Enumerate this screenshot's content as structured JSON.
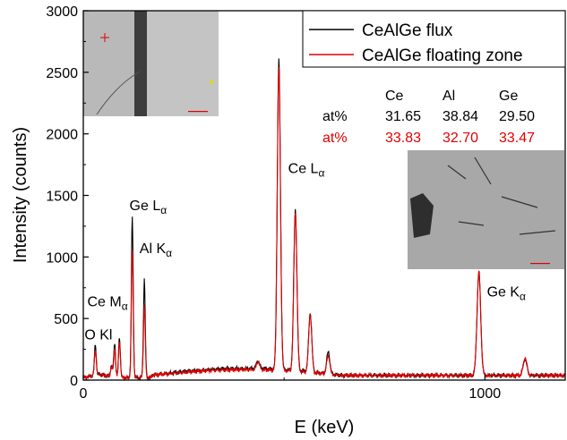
{
  "chart_data": {
    "type": "line",
    "xlabel": "E (keV)",
    "ylabel": "Intensity (counts)",
    "xlim": [
      0,
      1200
    ],
    "ylim": [
      0,
      3000
    ],
    "x_ticks": [
      0,
      1000
    ],
    "y_ticks": [
      0,
      500,
      1000,
      1500,
      2000,
      2500,
      3000
    ],
    "grid": false,
    "legend_position": "top-right",
    "series": [
      {
        "name": "CeAlGe flux",
        "color": "#000000",
        "peaks": [
          [
            30,
            290
          ],
          [
            70,
            120
          ],
          [
            78,
            300
          ],
          [
            90,
            350
          ],
          [
            122,
            1320
          ],
          [
            152,
            820
          ],
          [
            435,
            155
          ],
          [
            487,
            2600
          ],
          [
            528,
            1380
          ],
          [
            565,
            540
          ],
          [
            610,
            230
          ],
          [
            985,
            860
          ],
          [
            1100,
            170
          ]
        ]
      },
      {
        "name": "CeAlGe floating zone",
        "color": "#e00000",
        "peaks": [
          [
            30,
            250
          ],
          [
            70,
            110
          ],
          [
            78,
            260
          ],
          [
            90,
            320
          ],
          [
            122,
            1060
          ],
          [
            152,
            610
          ],
          [
            435,
            150
          ],
          [
            487,
            2530
          ],
          [
            528,
            1360
          ],
          [
            565,
            540
          ],
          [
            610,
            200
          ],
          [
            985,
            880
          ],
          [
            1100,
            180
          ]
        ]
      }
    ],
    "annotations": [
      {
        "text": "Ge L",
        "sub": "α",
        "x": 115,
        "y": 1380
      },
      {
        "text": "Al K",
        "sub": "α",
        "x": 140,
        "y": 1030
      },
      {
        "text": "Ce M",
        "sub": "α",
        "x": 10,
        "y": 600
      },
      {
        "text": "O Kl",
        "sub": "",
        "x": 3,
        "y": 330
      },
      {
        "text": "Ce L",
        "sub": "α",
        "x": 510,
        "y": 1680
      },
      {
        "text": "Ge K",
        "sub": "α",
        "x": 1005,
        "y": 680
      }
    ],
    "composition_table": {
      "headers": [
        "Ce",
        "Al",
        "Ge"
      ],
      "rows": [
        {
          "label": "at%",
          "values": [
            "31.65",
            "38.84",
            "29.50"
          ],
          "color": "#000000"
        },
        {
          "label": "at%",
          "values": [
            "33.83",
            "32.70",
            "33.47"
          ],
          "color": "#e00000"
        }
      ]
    }
  }
}
